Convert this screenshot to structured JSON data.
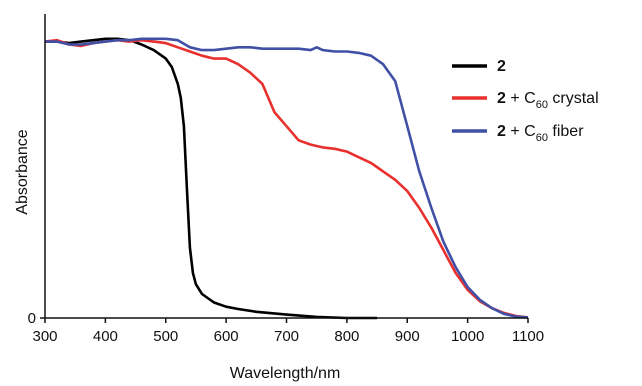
{
  "chart_data": {
    "type": "line",
    "title": "",
    "xlabel": "Wavelength/nm",
    "ylabel": "Absorbance",
    "xlim": [
      300,
      1100
    ],
    "ylim": [
      0,
      1
    ],
    "x_ticks": [
      "300",
      "400",
      "500",
      "600",
      "700",
      "800",
      "900",
      "1000",
      "1100"
    ],
    "y_ticks": [
      "0"
    ],
    "grid": false,
    "legend_position": "top-right",
    "series": [
      {
        "id": "s2",
        "name": "2",
        "name_bold": "2",
        "name_rest": "",
        "color": "#000000",
        "x": [
          300,
          320,
          340,
          360,
          380,
          400,
          420,
          440,
          460,
          480,
          500,
          510,
          520,
          525,
          530,
          535,
          540,
          545,
          550,
          560,
          580,
          600,
          620,
          650,
          700,
          750,
          800,
          850
        ],
        "y": [
          0.98,
          0.98,
          0.975,
          0.98,
          0.985,
          0.99,
          0.99,
          0.985,
          0.97,
          0.95,
          0.92,
          0.89,
          0.83,
          0.78,
          0.68,
          0.46,
          0.25,
          0.16,
          0.12,
          0.085,
          0.055,
          0.04,
          0.032,
          0.022,
          0.012,
          0.004,
          0.0,
          0.0
        ]
      },
      {
        "id": "s2c",
        "name": "2 + C60 crystal",
        "name_bold": "2",
        "name_rest": " + C",
        "name_sub": "60",
        "name_tail": " crystal",
        "color": "#e8302f",
        "x": [
          300,
          320,
          340,
          360,
          380,
          400,
          420,
          440,
          460,
          480,
          500,
          520,
          540,
          560,
          580,
          600,
          620,
          640,
          660,
          680,
          700,
          720,
          740,
          760,
          780,
          800,
          820,
          840,
          860,
          880,
          900,
          920,
          940,
          960,
          980,
          1000,
          1020,
          1040,
          1060,
          1080,
          1100
        ],
        "y": [
          0.98,
          0.985,
          0.97,
          0.965,
          0.975,
          0.98,
          0.985,
          0.98,
          0.985,
          0.98,
          0.975,
          0.96,
          0.945,
          0.93,
          0.92,
          0.92,
          0.9,
          0.87,
          0.83,
          0.73,
          0.68,
          0.63,
          0.615,
          0.605,
          0.6,
          0.59,
          0.57,
          0.55,
          0.52,
          0.49,
          0.45,
          0.39,
          0.32,
          0.24,
          0.16,
          0.1,
          0.06,
          0.035,
          0.018,
          0.007,
          0.002
        ]
      },
      {
        "id": "s2f",
        "name": "2 + C60 fiber",
        "name_bold": "2",
        "name_rest": " + C",
        "name_sub": "60",
        "name_tail": " fiber",
        "color": "#3f50a6",
        "x": [
          300,
          320,
          340,
          360,
          380,
          400,
          420,
          440,
          460,
          480,
          500,
          520,
          540,
          560,
          580,
          600,
          620,
          640,
          660,
          680,
          700,
          720,
          740,
          750,
          760,
          780,
          800,
          820,
          840,
          860,
          880,
          900,
          920,
          940,
          960,
          980,
          1000,
          1020,
          1040,
          1060,
          1080,
          1100
        ],
        "y": [
          0.98,
          0.98,
          0.97,
          0.97,
          0.975,
          0.98,
          0.985,
          0.985,
          0.99,
          0.99,
          0.99,
          0.985,
          0.96,
          0.95,
          0.95,
          0.955,
          0.96,
          0.96,
          0.955,
          0.955,
          0.955,
          0.955,
          0.95,
          0.96,
          0.95,
          0.945,
          0.945,
          0.94,
          0.93,
          0.9,
          0.84,
          0.68,
          0.52,
          0.39,
          0.27,
          0.18,
          0.11,
          0.065,
          0.035,
          0.015,
          0.005,
          0.002
        ]
      }
    ]
  }
}
